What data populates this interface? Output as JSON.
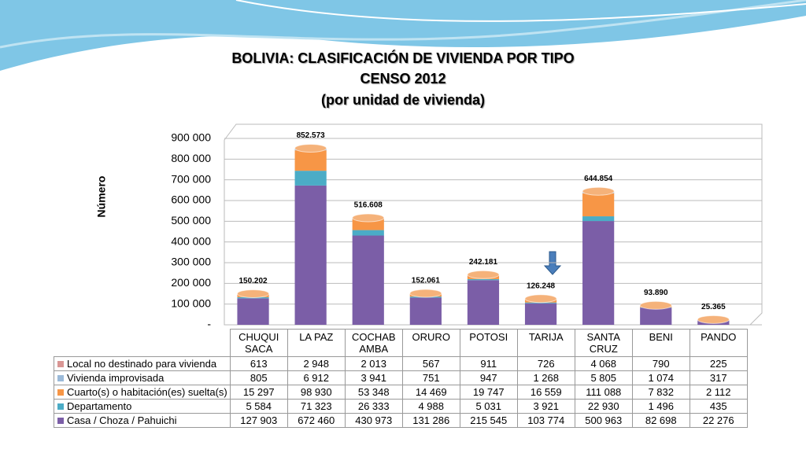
{
  "chart_data": {
    "type": "bar",
    "title": "BOLIVIA: CLASIFICACIÓN DE VIVIENDA POR TIPO",
    "subtitle": "CENSO 2012",
    "subtitle2": "(por unidad de vivienda)",
    "y_label": "Número",
    "stacked": true,
    "categories": [
      "CHUQUI SACA",
      "LA PAZ",
      "COCHAB AMBA",
      "ORURO",
      "POTOSI",
      "TARIJA",
      "SANTA CRUZ",
      "BENI",
      "PANDO"
    ],
    "series": [
      {
        "name": "Local no destinado para vivienda",
        "color": "#d99694",
        "values": [
          613,
          2948,
          2013,
          567,
          911,
          726,
          4068,
          790,
          225
        ],
        "value_labels": [
          "613",
          "2 948",
          "2 013",
          "567",
          "911",
          "726",
          "4 068",
          "790",
          "225"
        ]
      },
      {
        "name": "Vivienda improvisada",
        "color": "#9bbad9",
        "values": [
          805,
          6912,
          3941,
          751,
          947,
          1268,
          5805,
          1074,
          317
        ],
        "value_labels": [
          "805",
          "6 912",
          "3 941",
          "751",
          "947",
          "1 268",
          "5 805",
          "1 074",
          "317"
        ]
      },
      {
        "name": "Cuarto(s) o habitación(es) suelta(s)",
        "color": "#f79646",
        "values": [
          15297,
          98930,
          53348,
          14469,
          19747,
          16559,
          111088,
          7832,
          2112
        ],
        "value_labels": [
          "15 297",
          "98 930",
          "53 348",
          "14 469",
          "19 747",
          "16 559",
          "111 088",
          "7 832",
          "2 112"
        ]
      },
      {
        "name": "Departamento",
        "color": "#4bacc6",
        "values": [
          5584,
          71323,
          26333,
          4988,
          5031,
          3921,
          22930,
          1496,
          435
        ],
        "value_labels": [
          "5 584",
          "71 323",
          "26 333",
          "4 988",
          "5 031",
          "3 921",
          "22 930",
          "1 496",
          "435"
        ]
      },
      {
        "name": "Casa / Choza / Pahuichi",
        "color": "#7b5ea7",
        "values": [
          127903,
          672460,
          430973,
          131286,
          215545,
          103774,
          500963,
          82698,
          22276
        ],
        "value_labels": [
          "127 903",
          "672 460",
          "430 973",
          "131 286",
          "215 545",
          "103 774",
          "500 963",
          "82 698",
          "22 276"
        ]
      }
    ],
    "totals": {
      "values": [
        150202,
        852573,
        516608,
        152061,
        242181,
        126248,
        644854,
        93890,
        25365
      ],
      "value_labels": [
        "150.202",
        "852.573",
        "516.608",
        "152.061",
        "242.181",
        "126.248",
        "644.854",
        "93.890",
        "25.365"
      ]
    },
    "ylim": [
      0,
      900000
    ],
    "yticks": [
      {
        "value": 0,
        "label": "-"
      },
      {
        "value": 100000,
        "label": "100 000"
      },
      {
        "value": 200000,
        "label": "200 000"
      },
      {
        "value": 300000,
        "label": "300 000"
      },
      {
        "value": 400000,
        "label": "400 000"
      },
      {
        "value": 500000,
        "label": "500 000"
      },
      {
        "value": 600000,
        "label": "600 000"
      },
      {
        "value": 700000,
        "label": "700 000"
      },
      {
        "value": 800000,
        "label": "800 000"
      },
      {
        "value": 900000,
        "label": "900 000"
      }
    ],
    "grid": true
  }
}
